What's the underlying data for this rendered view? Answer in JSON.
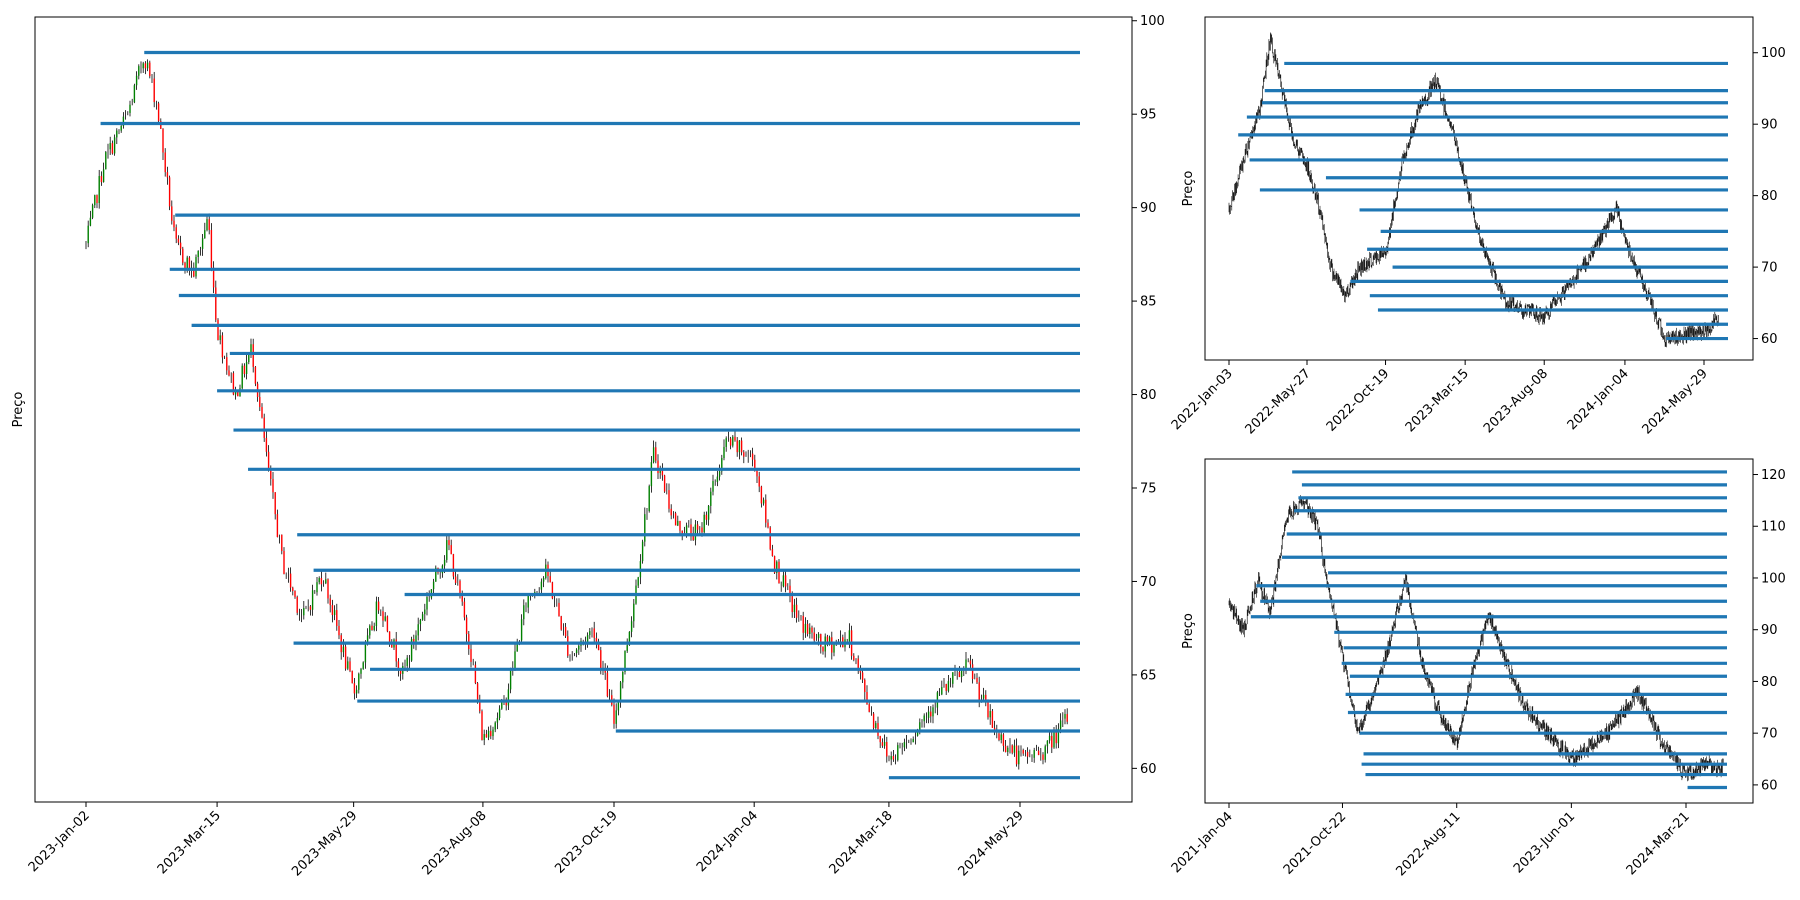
{
  "chart_data": [
    {
      "type": "candlestick",
      "ylabel": "Preço",
      "x_tick_labels": [
        "2023-Jan-02",
        "2023-Mar-15",
        "2023-May-29",
        "2023-Aug-08",
        "2023-Oct-19",
        "2024-Jan-04",
        "2024-Mar-18",
        "2024-May-29"
      ],
      "ylim": [
        58.2,
        100.2
      ],
      "y_ticks": [
        60,
        65,
        70,
        75,
        80,
        85,
        90,
        95,
        100
      ],
      "yaxis_side": "right",
      "candle_up_color": "#008000",
      "candle_down_color": "#ff0000",
      "line_color": "#1f77b4",
      "price_path": [
        {
          "x": "2023-Jan-02",
          "y": 88.0
        },
        {
          "x": "2023-Jan-12",
          "y": 92.5
        },
        {
          "x": "2023-Jan-25",
          "y": 95.0
        },
        {
          "x": "2023-Feb-03",
          "y": 98.2
        },
        {
          "x": "2023-Feb-10",
          "y": 95.5
        },
        {
          "x": "2023-Feb-20",
          "y": 88.0
        },
        {
          "x": "2023-Mar-02",
          "y": 86.5
        },
        {
          "x": "2023-Mar-10",
          "y": 89.5
        },
        {
          "x": "2023-Mar-15",
          "y": 83.5
        },
        {
          "x": "2023-Mar-25",
          "y": 80.0
        },
        {
          "x": "2023-Apr-03",
          "y": 82.5
        },
        {
          "x": "2023-Apr-12",
          "y": 76.0
        },
        {
          "x": "2023-Apr-20",
          "y": 71.0
        },
        {
          "x": "2023-May-01",
          "y": 68.0
        },
        {
          "x": "2023-May-12",
          "y": 70.5
        },
        {
          "x": "2023-May-29",
          "y": 64.0
        },
        {
          "x": "2023-Jun-12",
          "y": 69.0
        },
        {
          "x": "2023-Jun-25",
          "y": 65.0
        },
        {
          "x": "2023-Jul-08",
          "y": 69.0
        },
        {
          "x": "2023-Jul-20",
          "y": 72.0
        },
        {
          "x": "2023-Aug-01",
          "y": 66.5
        },
        {
          "x": "2023-Aug-08",
          "y": 61.5
        },
        {
          "x": "2023-Aug-20",
          "y": 63.5
        },
        {
          "x": "2023-Sep-01",
          "y": 69.0
        },
        {
          "x": "2023-Sep-12",
          "y": 70.5
        },
        {
          "x": "2023-Sep-25",
          "y": 66.0
        },
        {
          "x": "2023-Oct-08",
          "y": 67.5
        },
        {
          "x": "2023-Oct-19",
          "y": 62.5
        },
        {
          "x": "2023-Oct-30",
          "y": 69.0
        },
        {
          "x": "2023-Nov-10",
          "y": 77.0
        },
        {
          "x": "2023-Nov-22",
          "y": 73.0
        },
        {
          "x": "2023-Dec-05",
          "y": 72.5
        },
        {
          "x": "2023-Dec-20",
          "y": 77.5
        },
        {
          "x": "2024-Jan-04",
          "y": 76.5
        },
        {
          "x": "2024-Jan-15",
          "y": 71.0
        },
        {
          "x": "2024-Jan-28",
          "y": 68.0
        },
        {
          "x": "2024-Feb-10",
          "y": 66.5
        },
        {
          "x": "2024-Feb-25",
          "y": 67.0
        },
        {
          "x": "2024-Mar-08",
          "y": 63.0
        },
        {
          "x": "2024-Mar-18",
          "y": 60.5
        },
        {
          "x": "2024-Apr-01",
          "y": 62.0
        },
        {
          "x": "2024-Apr-15",
          "y": 64.0
        },
        {
          "x": "2024-May-01",
          "y": 65.5
        },
        {
          "x": "2024-May-15",
          "y": 62.0
        },
        {
          "x": "2024-May-29",
          "y": 60.5
        },
        {
          "x": "2024-Jun-12",
          "y": 61.0
        },
        {
          "x": "2024-Jun-25",
          "y": 62.8
        }
      ],
      "levels": [
        {
          "y": 98.3,
          "from": "2023-Feb-03"
        },
        {
          "y": 94.5,
          "from": "2023-Jan-10"
        },
        {
          "y": 89.6,
          "from": "2023-Feb-20"
        },
        {
          "y": 86.7,
          "from": "2023-Feb-17"
        },
        {
          "y": 85.3,
          "from": "2023-Feb-22"
        },
        {
          "y": 83.7,
          "from": "2023-Mar-01"
        },
        {
          "y": 82.2,
          "from": "2023-Mar-22"
        },
        {
          "y": 80.2,
          "from": "2023-Mar-15"
        },
        {
          "y": 78.1,
          "from": "2023-Mar-24"
        },
        {
          "y": 76.0,
          "from": "2023-Apr-01"
        },
        {
          "y": 72.5,
          "from": "2023-Apr-28"
        },
        {
          "y": 70.6,
          "from": "2023-May-07"
        },
        {
          "y": 69.3,
          "from": "2023-Jun-26"
        },
        {
          "y": 66.7,
          "from": "2023-Apr-26"
        },
        {
          "y": 65.3,
          "from": "2023-Jun-07"
        },
        {
          "y": 63.6,
          "from": "2023-May-31"
        },
        {
          "y": 62.0,
          "from": "2023-Oct-20"
        },
        {
          "y": 59.5,
          "from": "2024-Mar-18"
        }
      ]
    },
    {
      "type": "line",
      "ylabel": "Preço",
      "x_tick_labels": [
        "2022-Jan-03",
        "2022-May-27",
        "2022-Oct-19",
        "2023-Mar-15",
        "2023-Aug-08",
        "2024-Jan-04",
        "2024-May-29"
      ],
      "ylim": [
        57,
        105
      ],
      "y_ticks": [
        60,
        70,
        80,
        90,
        100
      ],
      "yaxis_side": "right",
      "line_color": "#1f77b4",
      "price_path": [
        {
          "x": "2022-Jan-03",
          "y": 78
        },
        {
          "x": "2022-Feb-10",
          "y": 88
        },
        {
          "x": "2022-Mar-01",
          "y": 92
        },
        {
          "x": "2022-Mar-20",
          "y": 102
        },
        {
          "x": "2022-Apr-10",
          "y": 95
        },
        {
          "x": "2022-May-01",
          "y": 88
        },
        {
          "x": "2022-May-27",
          "y": 84
        },
        {
          "x": "2022-Jun-20",
          "y": 78
        },
        {
          "x": "2022-Jul-10",
          "y": 70
        },
        {
          "x": "2022-Aug-05",
          "y": 66
        },
        {
          "x": "2022-Sep-01",
          "y": 70
        },
        {
          "x": "2022-Oct-19",
          "y": 72
        },
        {
          "x": "2022-Nov-20",
          "y": 85
        },
        {
          "x": "2022-Dec-20",
          "y": 92
        },
        {
          "x": "2023-Jan-20",
          "y": 96
        },
        {
          "x": "2023-Feb-20",
          "y": 89
        },
        {
          "x": "2023-Mar-15",
          "y": 82
        },
        {
          "x": "2023-Apr-15",
          "y": 73
        },
        {
          "x": "2023-May-29",
          "y": 65
        },
        {
          "x": "2023-Aug-08",
          "y": 63
        },
        {
          "x": "2023-Oct-19",
          "y": 70
        },
        {
          "x": "2023-Dec-20",
          "y": 78
        },
        {
          "x": "2024-Jan-04",
          "y": 74
        },
        {
          "x": "2024-Mar-18",
          "y": 60
        },
        {
          "x": "2024-May-29",
          "y": 61
        },
        {
          "x": "2024-Jun-25",
          "y": 63
        }
      ],
      "levels": [
        {
          "y": 98.5,
          "from": "2022-Apr-15"
        },
        {
          "y": 94.7,
          "from": "2022-Mar-10"
        },
        {
          "y": 93.0,
          "from": "2022-Mar-05"
        },
        {
          "y": 91.0,
          "from": "2022-Feb-05"
        },
        {
          "y": 88.5,
          "from": "2022-Jan-20"
        },
        {
          "y": 85.0,
          "from": "2022-Feb-10"
        },
        {
          "y": 82.5,
          "from": "2022-Jul-01"
        },
        {
          "y": 80.8,
          "from": "2022-Mar-01"
        },
        {
          "y": 78.0,
          "from": "2022-Sep-01"
        },
        {
          "y": 75.0,
          "from": "2022-Oct-10"
        },
        {
          "y": 72.5,
          "from": "2022-Sep-15"
        },
        {
          "y": 70.0,
          "from": "2022-Nov-01"
        },
        {
          "y": 68.0,
          "from": "2022-Aug-15"
        },
        {
          "y": 66.0,
          "from": "2022-Sep-20"
        },
        {
          "y": 64.0,
          "from": "2022-Oct-05"
        },
        {
          "y": 62.0,
          "from": "2024-Mar-20"
        },
        {
          "y": 60.0,
          "from": "2024-Mar-20"
        }
      ]
    },
    {
      "type": "line",
      "ylabel": "Preço",
      "x_tick_labels": [
        "2021-Jan-04",
        "2021-Oct-22",
        "2022-Aug-11",
        "2023-Jun-01",
        "2024-Mar-21"
      ],
      "ylim": [
        56.5,
        123
      ],
      "y_ticks": [
        60,
        70,
        80,
        90,
        100,
        110,
        120
      ],
      "yaxis_side": "right",
      "line_color": "#1f77b4",
      "price_path": [
        {
          "x": "2021-Jan-04",
          "y": 95
        },
        {
          "x": "2021-Feb-10",
          "y": 90
        },
        {
          "x": "2021-Mar-20",
          "y": 100
        },
        {
          "x": "2021-Apr-20",
          "y": 93
        },
        {
          "x": "2021-Jun-01",
          "y": 112
        },
        {
          "x": "2021-Jul-15",
          "y": 115
        },
        {
          "x": "2021-Aug-20",
          "y": 110
        },
        {
          "x": "2021-Sep-10",
          "y": 100
        },
        {
          "x": "2021-Oct-22",
          "y": 85
        },
        {
          "x": "2021-Dec-01",
          "y": 70
        },
        {
          "x": "2022-Jan-20",
          "y": 80
        },
        {
          "x": "2022-Mar-01",
          "y": 90
        },
        {
          "x": "2022-Apr-01",
          "y": 100
        },
        {
          "x": "2022-May-10",
          "y": 85
        },
        {
          "x": "2022-Jun-20",
          "y": 75
        },
        {
          "x": "2022-Aug-11",
          "y": 68
        },
        {
          "x": "2022-Sep-20",
          "y": 82
        },
        {
          "x": "2022-Nov-01",
          "y": 93
        },
        {
          "x": "2022-Dec-10",
          "y": 85
        },
        {
          "x": "2023-Feb-01",
          "y": 75
        },
        {
          "x": "2023-Jun-01",
          "y": 65
        },
        {
          "x": "2023-Sep-01",
          "y": 70
        },
        {
          "x": "2023-Nov-20",
          "y": 78
        },
        {
          "x": "2024-Jan-20",
          "y": 68
        },
        {
          "x": "2024-Mar-21",
          "y": 62
        },
        {
          "x": "2024-May-10",
          "y": 64
        },
        {
          "x": "2024-Jun-25",
          "y": 63
        }
      ],
      "levels": [
        {
          "y": 120.5,
          "from": "2021-Jun-15"
        },
        {
          "y": 118.0,
          "from": "2021-Jul-10"
        },
        {
          "y": 115.5,
          "from": "2021-Jul-01"
        },
        {
          "y": 113.0,
          "from": "2021-Jun-20"
        },
        {
          "y": 108.5,
          "from": "2021-Jun-01"
        },
        {
          "y": 104.0,
          "from": "2021-May-20"
        },
        {
          "y": 101.0,
          "from": "2021-Sep-15"
        },
        {
          "y": 98.5,
          "from": "2021-Mar-15"
        },
        {
          "y": 95.5,
          "from": "2021-Mar-25"
        },
        {
          "y": 92.5,
          "from": "2021-Mar-01"
        },
        {
          "y": 89.5,
          "from": "2021-Oct-01"
        },
        {
          "y": 86.5,
          "from": "2021-Oct-25"
        },
        {
          "y": 83.5,
          "from": "2021-Oct-20"
        },
        {
          "y": 81.0,
          "from": "2021-Nov-10"
        },
        {
          "y": 77.5,
          "from": "2021-Oct-30"
        },
        {
          "y": 74.0,
          "from": "2021-Nov-05"
        },
        {
          "y": 70.0,
          "from": "2021-Dec-05"
        },
        {
          "y": 66.0,
          "from": "2021-Dec-15"
        },
        {
          "y": 64.0,
          "from": "2021-Dec-10"
        },
        {
          "y": 62.0,
          "from": "2021-Dec-20"
        },
        {
          "y": 59.5,
          "from": "2024-Mar-25"
        }
      ]
    }
  ]
}
